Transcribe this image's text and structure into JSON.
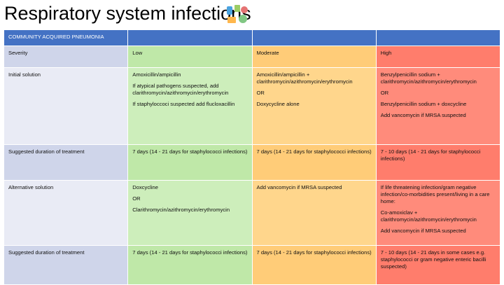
{
  "header": {
    "title": "Respiratory system infections"
  },
  "table": {
    "header": [
      "COMMUNITY ACQUIRED PNEUMONIA",
      "",
      "",
      ""
    ],
    "rows": [
      [
        [
          "Severity"
        ],
        [
          "Low"
        ],
        [
          "Moderate"
        ],
        [
          "High"
        ]
      ],
      [
        [
          "Initial solution"
        ],
        [
          "Amoxicillin/ampicillin",
          "If atypical pathogens suspected, add clarithromycin/azithromycin/erythromycin",
          "If staphyloccoci suspected add flucloxacillin"
        ],
        [
          "Amoxicillin/ampicillin + clarithromycin/azithromycin/erythromycin",
          "OR",
          "Doxycycline alone"
        ],
        [
          "Benzylpenicillin sodium + clarithromycin/azithromycin/erythromycin",
          "OR",
          "Benzylpenicillin sodium + doxcycline",
          "Add vancomycin if MRSA suspected"
        ]
      ],
      [
        [
          "Suggested duration of treatment"
        ],
        [
          "7 days (14 - 21 days for staphylococci infections)"
        ],
        [
          "7 days (14 - 21 days for staphylococci infections)"
        ],
        [
          "7 - 10 days (14 - 21 days for staphylococci infections)"
        ]
      ],
      [
        [
          "Alternative solution"
        ],
        [
          "Doxcycline",
          "OR",
          "Clarithromycin/azithromycin/erythromycin"
        ],
        [
          "Add vancomycin if MRSA suspected"
        ],
        [
          "If life threatening infection/gram negative infection/co-morbidities present/living in a care home:",
          "Co-amoxiclav + clarithromycin/azithromycin/erythromycin",
          "Add vancomycin if MRSA suspected"
        ]
      ],
      [
        [
          "Suggested duration of treatment"
        ],
        [
          "7 days (14 - 21 days for staphylococci infections)"
        ],
        [
          "7 days (14 - 21 days for staphylococci infections)"
        ],
        [
          "7 - 10 days (14 - 21 days in some cases e.g. staphylococci or gram negative enteric bacilli suspected)"
        ]
      ]
    ]
  }
}
